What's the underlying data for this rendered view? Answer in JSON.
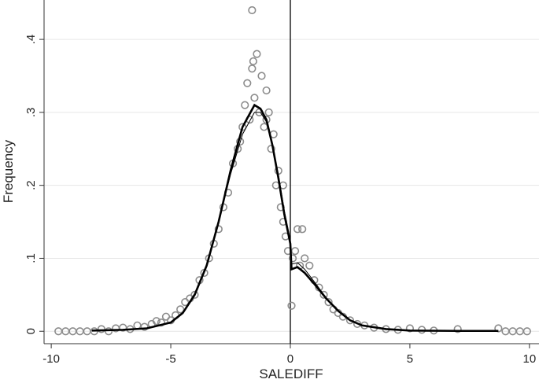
{
  "chart_data": {
    "type": "scatter",
    "x_label": "SALEDIFF",
    "y_label": "Frequency",
    "xlim": [
      -10.3,
      10.4
    ],
    "ylim": [
      -0.017,
      0.454
    ],
    "xticks": [
      -10,
      -5,
      0,
      5,
      10
    ],
    "yticks": [
      0,
      {
        "value": 0.1,
        "label": ".1"
      },
      {
        "value": 0.2,
        "label": ".2"
      },
      {
        "value": 0.3,
        "label": ".3"
      },
      {
        "value": 0.4,
        "label": ".4"
      }
    ],
    "grid": true,
    "xline": 0,
    "series": [
      {
        "type": "scatter",
        "color": "#8c8c8c",
        "x": [
          -9.7,
          -9.4,
          -9.1,
          -8.8,
          -8.5,
          -8.2,
          -7.9,
          -7.6,
          -7.3,
          -7.0,
          -6.7,
          -6.4,
          -6.1,
          -5.8,
          -5.6,
          -5.4,
          -5.2,
          -5.0,
          -4.8,
          -4.6,
          -4.4,
          -4.2,
          -4.0,
          -3.8,
          -3.6,
          -3.4,
          -3.2,
          -3.0,
          -2.8,
          -2.6,
          -2.4,
          -2.2,
          -2.1,
          -2.0,
          -1.9,
          -1.8,
          -1.7,
          -1.6,
          -1.6,
          -1.55,
          -1.5,
          -1.4,
          -1.3,
          -1.2,
          -1.1,
          -1.0,
          -1.0,
          -0.9,
          -0.8,
          -0.7,
          -0.6,
          -0.5,
          -0.4,
          -0.3,
          -0.3,
          -0.2,
          -0.1,
          0.05,
          0.1,
          0.2,
          0.3,
          0.4,
          0.5,
          0.6,
          0.8,
          1.0,
          1.2,
          1.4,
          1.6,
          1.8,
          2.0,
          2.2,
          2.5,
          2.8,
          3.1,
          3.5,
          4.0,
          4.5,
          5.0,
          5.5,
          6.0,
          7.0,
          8.7,
          9.0,
          9.3,
          9.6,
          9.9
        ],
        "values": [
          0,
          0,
          0,
          0,
          0,
          0,
          0.003,
          0,
          0.004,
          0.005,
          0.003,
          0.008,
          0.006,
          0.01,
          0.014,
          0.012,
          0.02,
          0.015,
          0.022,
          0.03,
          0.04,
          0.045,
          0.05,
          0.07,
          0.08,
          0.1,
          0.12,
          0.14,
          0.17,
          0.19,
          0.23,
          0.25,
          0.26,
          0.28,
          0.31,
          0.34,
          0.29,
          0.36,
          0.44,
          0.37,
          0.32,
          0.38,
          0.3,
          0.35,
          0.28,
          0.33,
          0.29,
          0.3,
          0.25,
          0.27,
          0.2,
          0.22,
          0.17,
          0.15,
          0.2,
          0.13,
          0.11,
          0.035,
          0.1,
          0.11,
          0.14,
          0.09,
          0.14,
          0.1,
          0.09,
          0.07,
          0.06,
          0.05,
          0.04,
          0.03,
          0.025,
          0.02,
          0.015,
          0.01,
          0.008,
          0.005,
          0.003,
          0.002,
          0.004,
          0.002,
          0.001,
          0.003,
          0.004,
          0,
          0,
          0,
          0
        ]
      },
      {
        "type": "line",
        "color": "#000000",
        "x": [
          -8.3,
          -7,
          -6,
          -5,
          -4.5,
          -4,
          -3.5,
          -3,
          -2.5,
          -2,
          -1.5,
          -1.25,
          -1,
          -0.75,
          -0.5,
          -0.25,
          0,
          0.05,
          0.3,
          0.6,
          1,
          1.5,
          2,
          2.5,
          3,
          4,
          5,
          7,
          8.7
        ],
        "values": [
          0.001,
          0.002,
          0.004,
          0.012,
          0.025,
          0.05,
          0.09,
          0.15,
          0.22,
          0.28,
          0.31,
          0.305,
          0.29,
          0.255,
          0.21,
          0.16,
          0.12,
          0.085,
          0.088,
          0.08,
          0.065,
          0.045,
          0.028,
          0.015,
          0.008,
          0.003,
          0.001,
          0.0005,
          0.0005
        ]
      },
      {
        "type": "line",
        "color": "#000000",
        "x": [
          -8.3,
          -7,
          -6,
          -5,
          -4.5,
          -4,
          -3.5,
          -3,
          -2.5,
          -2,
          -1.5,
          -1.25,
          -1,
          -0.75,
          -0.5,
          -0.25,
          0,
          0.05,
          0.3,
          0.6,
          1,
          1.5,
          2,
          2.5,
          3,
          4,
          5,
          7,
          8.7
        ],
        "values": [
          0.001,
          0.002,
          0.004,
          0.013,
          0.026,
          0.052,
          0.092,
          0.15,
          0.215,
          0.27,
          0.3,
          0.3,
          0.287,
          0.255,
          0.215,
          0.165,
          0.125,
          0.092,
          0.094,
          0.085,
          0.068,
          0.046,
          0.028,
          0.015,
          0.008,
          0.003,
          0.001,
          0.0005,
          0.0005
        ]
      }
    ]
  }
}
